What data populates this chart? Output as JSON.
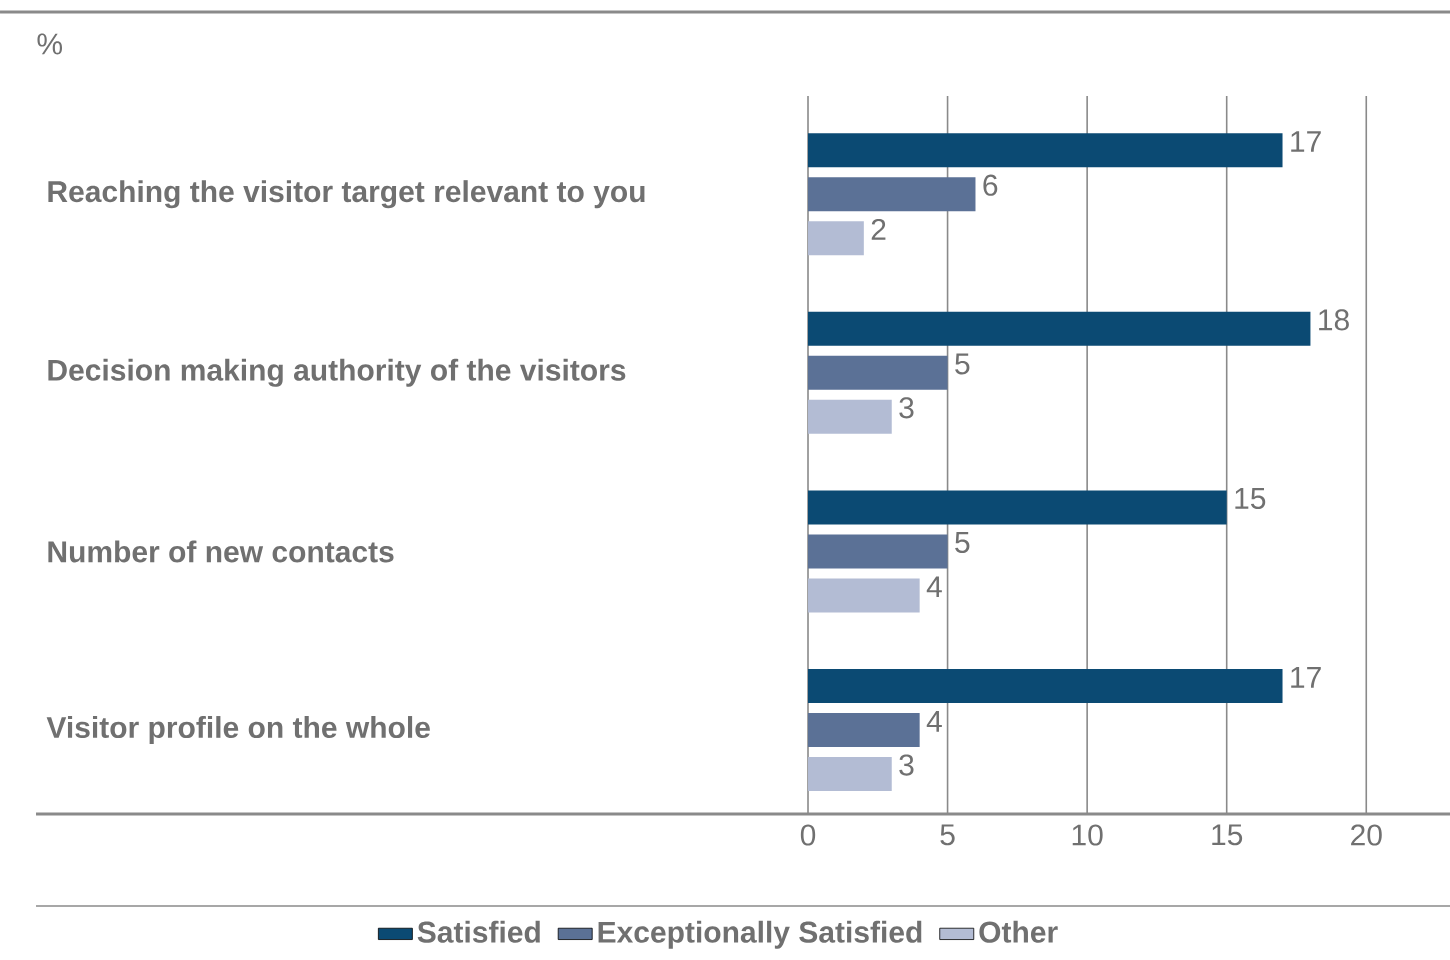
{
  "chart_data": {
    "type": "bar",
    "orientation": "horizontal",
    "title": "%",
    "categories": [
      "Reaching the visitor target relevant to you",
      "Decision making authority of the visitors",
      "Number of new contacts",
      "Visitor profile on the whole"
    ],
    "series": [
      {
        "name": "Satisfied",
        "color": "#0b4a73",
        "values": [
          17,
          18,
          15,
          17
        ]
      },
      {
        "name": "Exceptionally Satisfied",
        "color": "#5b7196",
        "values": [
          6,
          5,
          5,
          4
        ]
      },
      {
        "name": "Other",
        "color": "#b3bcd4",
        "values": [
          2,
          3,
          4,
          3
        ]
      }
    ],
    "xlim": [
      0,
      23
    ],
    "xticks": [
      0,
      5,
      10,
      15,
      20
    ],
    "grid": "x",
    "legend": "bottom",
    "data_labels": true
  }
}
